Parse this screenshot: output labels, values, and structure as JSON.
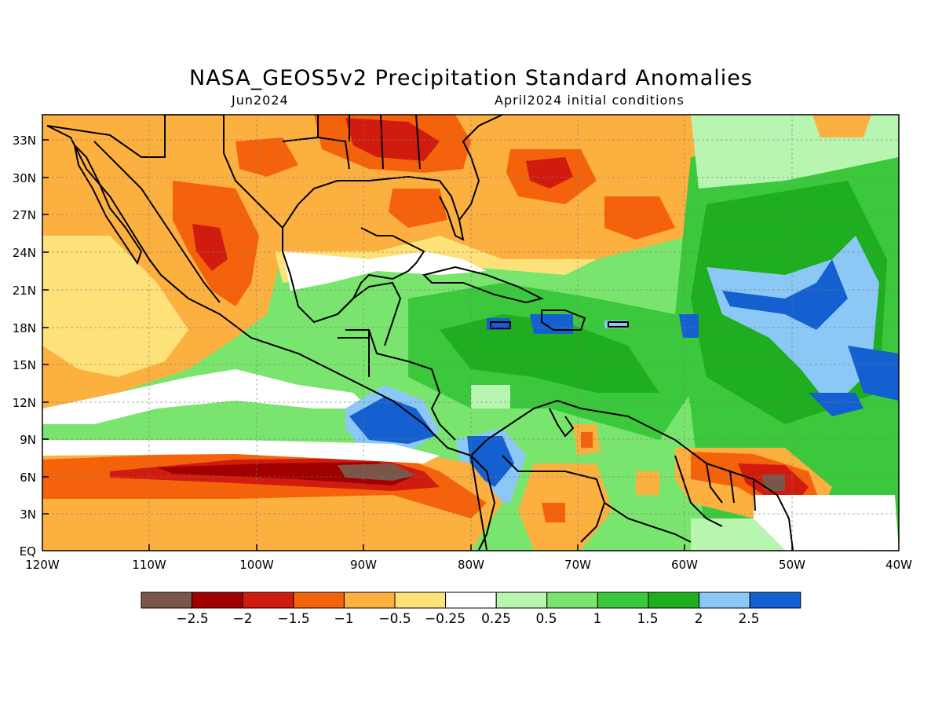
{
  "header": {
    "title": "NASA_GEOS5v2 Precipitation Standard Anomalies",
    "valid_month": "Jun2024",
    "init_conditions": "April2024 initial conditions"
  },
  "axes": {
    "lat_labels": [
      "33N",
      "30N",
      "27N",
      "24N",
      "21N",
      "18N",
      "15N",
      "12N",
      "9N",
      "6N",
      "3N",
      "EQ"
    ],
    "lon_labels": [
      "120W",
      "110W",
      "100W",
      "90W",
      "80W",
      "70W",
      "60W",
      "50W",
      "40W"
    ]
  },
  "legend": {
    "colors": [
      "#7b5548",
      "#a00000",
      "#d21b0f",
      "#f4620b",
      "#fcb040",
      "#fde27a",
      "#ffffff",
      "#b8f5b0",
      "#7ae56e",
      "#3cc83c",
      "#1fae1f",
      "#8cc8f5",
      "#1560d0"
    ],
    "labels": [
      "−2.5",
      "−2",
      "−1.5",
      "−1",
      "−0.5",
      "−0.25",
      "0.25",
      "0.5",
      "1",
      "1.5",
      "2",
      "2.5"
    ]
  },
  "colors": {
    "ocean_default": "#7ae56e",
    "land_outline": "#000000"
  }
}
